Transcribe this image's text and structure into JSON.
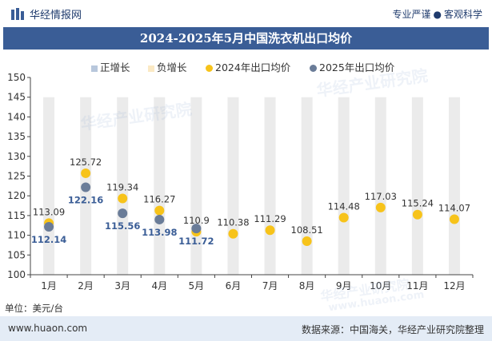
{
  "header": {
    "brand": "华经情报网",
    "tagline_left": "专业严谨",
    "tagline_right": "客观科学"
  },
  "title": "2024-2025年5月中国洗衣机出口均价",
  "legend": [
    {
      "label": "正增长",
      "kind": "square",
      "color": "#b8c7dc"
    },
    {
      "label": "负增长",
      "kind": "square",
      "color": "#fbe9c4"
    },
    {
      "label": "2024年出口均价",
      "kind": "circle",
      "color": "#f7c31a"
    },
    {
      "label": "2025年出口均价",
      "kind": "circle",
      "color": "#6a7c98"
    }
  ],
  "unit_label": "单位：美元/台",
  "footer": {
    "site": "www.huaon.com",
    "source": "数据来源：中国海关，华经产业研究院整理"
  },
  "watermark": "华经产业研究院",
  "watermark_url": "www.huaon.com",
  "chart_data": {
    "type": "scatter",
    "categories": [
      "1月",
      "2月",
      "3月",
      "4月",
      "5月",
      "6月",
      "7月",
      "8月",
      "9月",
      "10月",
      "11月",
      "12月"
    ],
    "series": [
      {
        "name": "2024年出口均价",
        "color": "#f7c31a",
        "values": [
          113.09,
          125.72,
          119.34,
          116.27,
          110.9,
          110.38,
          111.29,
          108.51,
          114.48,
          117.03,
          115.24,
          114.07
        ]
      },
      {
        "name": "2025年出口均价",
        "color": "#6a7c98",
        "values": [
          112.14,
          122.16,
          115.56,
          113.98,
          111.72
        ]
      }
    ],
    "y_ticks": [
      100,
      105,
      110,
      115,
      120,
      125,
      130,
      135,
      140,
      145,
      150
    ],
    "ylim": [
      100,
      150
    ],
    "column_fill": "#ebebeb",
    "grid": false
  }
}
